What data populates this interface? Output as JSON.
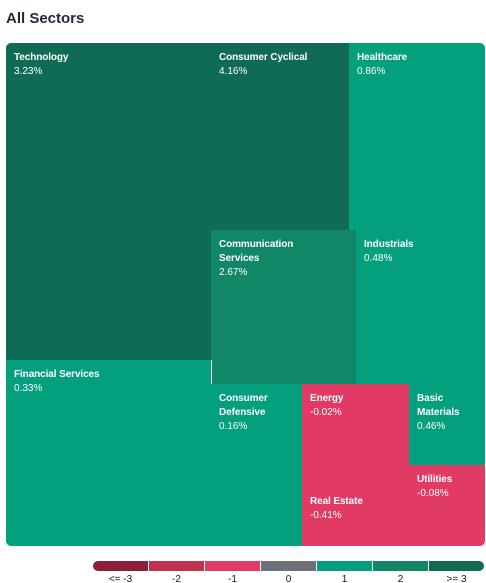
{
  "title": "All Sectors",
  "colors": {
    "dark_green": "#0f6b55",
    "green": "#049f7c",
    "mid_green": "#128767",
    "red": "#e03a65",
    "neutral": "#6b7176"
  },
  "sectors": [
    {
      "name": "Technology",
      "change": "3.23%",
      "color": "#0f6b55"
    },
    {
      "name": "Consumer Cyclical",
      "change": "4.16%",
      "color": "#0f6b55"
    },
    {
      "name": "Healthcare",
      "change": "0.86%",
      "color": "#049f7c"
    },
    {
      "name": "Communication\nServices",
      "change": "2.67%",
      "color": "#128767"
    },
    {
      "name": "Industrials",
      "change": "0.48%",
      "color": "#049f7c"
    },
    {
      "name": "Financial Services",
      "change": "0.33%",
      "color": "#049f7c"
    },
    {
      "name": "Consumer\nDefensive",
      "change": "0.16%",
      "color": "#049f7c"
    },
    {
      "name": "Energy",
      "change": "-0.02%",
      "color": "#e03a65"
    },
    {
      "name": "Basic\nMaterials",
      "change": "0.46%",
      "color": "#049f7c"
    },
    {
      "name": "Real Estate",
      "change": "-0.41%",
      "color": "#e03a65"
    },
    {
      "name": "Utilities",
      "change": "-0.08%",
      "color": "#e03a65"
    }
  ],
  "legend": [
    {
      "label": "<= -3",
      "color": "#8a1f3a"
    },
    {
      "label": "-2",
      "color": "#c0304f"
    },
    {
      "label": "-1",
      "color": "#e03a65"
    },
    {
      "label": "0",
      "color": "#6b7176"
    },
    {
      "label": "1",
      "color": "#049f7c"
    },
    {
      "label": "2",
      "color": "#128767"
    },
    {
      "label": ">= 3",
      "color": "#0f6b55"
    }
  ]
}
